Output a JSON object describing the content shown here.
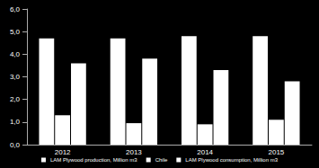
{
  "chart_data": {
    "type": "bar",
    "categories": [
      "2012",
      "2013",
      "2014",
      "2015"
    ],
    "series": [
      {
        "name": "LAM Plywood production, Million m3",
        "color": "#ffffff",
        "values": [
          4.7,
          4.7,
          4.8,
          4.8
        ]
      },
      {
        "name": "Chile",
        "color": "#ffffff",
        "values": [
          1.3,
          0.95,
          0.9,
          1.1
        ]
      },
      {
        "name": "LAM Plywood consumption, Million m3",
        "color": "#ffffff",
        "values": [
          3.6,
          3.8,
          3.3,
          2.8
        ]
      }
    ],
    "ylim": [
      0,
      6
    ],
    "yticks": [
      {
        "value": 0,
        "label": "0,0"
      },
      {
        "value": 1,
        "label": "1,0"
      },
      {
        "value": 2,
        "label": "2,0"
      },
      {
        "value": 3,
        "label": "3,0"
      },
      {
        "value": 4,
        "label": "4,0"
      },
      {
        "value": 5,
        "label": "5,0"
      },
      {
        "value": 6,
        "label": "6,0"
      }
    ],
    "grid": false,
    "legend": "bottom"
  }
}
